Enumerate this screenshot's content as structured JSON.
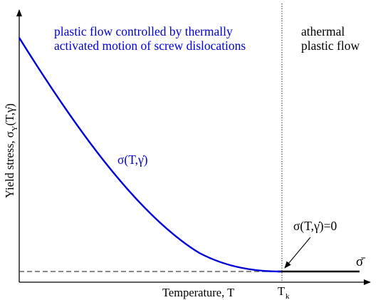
{
  "axes": {
    "ylabel_main": "Yield stress,  σ",
    "ylabel_sub": "Y",
    "ylabel_args": "(T,",
    "ylabel_dot": "γ̇",
    "ylabel_close": ")",
    "xlabel": "Temperature,  T",
    "xtick_main": "T",
    "xtick_sub": "k"
  },
  "regions": {
    "thermal_line1": "plastic flow controlled by thermally",
    "thermal_line2": "activated motion of screw dislocations",
    "athermal_line1": "athermal",
    "athermal_line2": "plastic flow"
  },
  "curve": {
    "label": "σ(T,γ̇)",
    "color": "#0000d8"
  },
  "annotation": {
    "text": "σ(T,γ̇)=0"
  },
  "baseline": {
    "label": "σ̄"
  },
  "colors": {
    "region_text": "#0000d8",
    "axis": "#000000"
  }
}
